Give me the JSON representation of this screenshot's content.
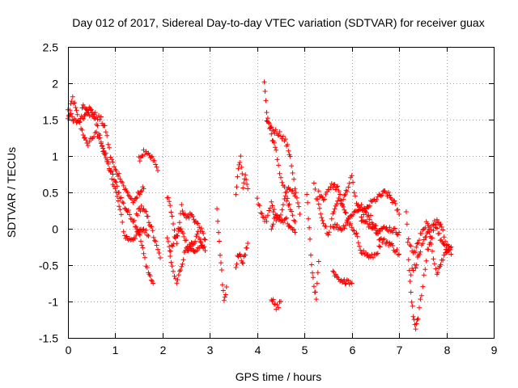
{
  "chart_data": {
    "type": "scatter",
    "title": "Day 012 of 2017, Sidereal Day-to-day VTEC variation (SDTVAR) for receiver guax",
    "xlabel": "GPS time / hours",
    "ylabel": "SDTVAR / TECUs",
    "xlim": [
      0,
      9
    ],
    "ylim": [
      -1.5,
      2.5
    ],
    "xticks": [
      "0",
      "1",
      "2",
      "3",
      "4",
      "5",
      "6",
      "7",
      "8",
      "9"
    ],
    "yticks": [
      "2.5",
      "2",
      "1.5",
      "1",
      "0.5",
      "0",
      "-0.5",
      "-1",
      "-1.5"
    ],
    "grid": true,
    "marker": "+",
    "color": "#ff0000",
    "series": [
      {
        "name": "SDTVAR",
        "traces": [
          [
            [
              0.0,
              1.5
            ],
            [
              0.1,
              1.8
            ],
            [
              0.2,
              1.55
            ],
            [
              0.3,
              1.35
            ],
            [
              0.4,
              1.15
            ],
            [
              0.5,
              1.25
            ],
            [
              0.6,
              1.3
            ],
            [
              0.7,
              1.2
            ],
            [
              0.8,
              1.0
            ],
            [
              0.9,
              0.8
            ],
            [
              1.0,
              0.65
            ],
            [
              1.1,
              0.45
            ],
            [
              1.2,
              0.3
            ],
            [
              1.3,
              0.2
            ],
            [
              1.4,
              0.1
            ],
            [
              1.5,
              -0.05
            ],
            [
              1.6,
              -0.35
            ],
            [
              1.7,
              -0.6
            ],
            [
              1.8,
              -0.75
            ]
          ],
          [
            [
              0.0,
              1.6
            ],
            [
              0.2,
              1.45
            ],
            [
              0.35,
              1.55
            ],
            [
              0.5,
              1.6
            ],
            [
              0.6,
              1.45
            ],
            [
              0.7,
              1.2
            ],
            [
              0.8,
              0.95
            ],
            [
              0.9,
              0.75
            ],
            [
              1.0,
              0.55
            ],
            [
              1.1,
              0.25
            ],
            [
              1.2,
              -0.1
            ],
            [
              1.3,
              -0.15
            ],
            [
              1.4,
              -0.12
            ],
            [
              1.5,
              -0.05
            ],
            [
              1.6,
              0.0
            ],
            [
              1.7,
              -0.1
            ]
          ],
          [
            [
              0.3,
              1.7
            ],
            [
              0.45,
              1.65
            ],
            [
              0.6,
              1.55
            ],
            [
              0.7,
              1.5
            ],
            [
              0.8,
              1.35
            ],
            [
              0.9,
              1.0
            ],
            [
              1.0,
              0.8
            ],
            [
              1.1,
              0.72
            ],
            [
              1.2,
              0.55
            ],
            [
              1.3,
              0.45
            ],
            [
              1.4,
              0.35
            ],
            [
              1.5,
              0.5
            ],
            [
              1.6,
              0.55
            ]
          ],
          [
            [
              1.5,
              0.95
            ],
            [
              1.6,
              1.05
            ],
            [
              1.7,
              1.0
            ],
            [
              1.8,
              0.95
            ],
            [
              1.9,
              0.8
            ]
          ],
          [
            [
              1.45,
              0.2
            ],
            [
              1.55,
              0.3
            ],
            [
              1.65,
              0.2
            ],
            [
              1.75,
              0.05
            ],
            [
              1.85,
              -0.2
            ],
            [
              1.95,
              -0.4
            ]
          ],
          [
            [
              2.1,
              0.45
            ],
            [
              2.2,
              0.2
            ],
            [
              2.3,
              -0.2
            ],
            [
              2.4,
              0.3
            ],
            [
              2.5,
              0.15
            ],
            [
              2.6,
              0.2
            ],
            [
              2.7,
              0.1
            ],
            [
              2.8,
              0.0
            ],
            [
              2.9,
              -0.15
            ]
          ],
          [
            [
              2.1,
              -0.1
            ],
            [
              2.2,
              -0.55
            ],
            [
              2.3,
              -0.75
            ],
            [
              2.4,
              -0.5
            ],
            [
              2.5,
              -0.25
            ],
            [
              2.6,
              -0.3
            ],
            [
              2.7,
              -0.35
            ],
            [
              2.8,
              -0.2
            ],
            [
              2.9,
              -0.3
            ]
          ],
          [
            [
              2.15,
              -0.3
            ],
            [
              2.25,
              -0.15
            ],
            [
              2.35,
              0.0
            ],
            [
              2.45,
              -0.1
            ],
            [
              2.55,
              -0.25
            ],
            [
              2.65,
              -0.2
            ],
            [
              2.75,
              -0.05
            ],
            [
              2.85,
              -0.25
            ]
          ],
          [
            [
              3.15,
              0.3
            ],
            [
              3.2,
              -0.2
            ],
            [
              3.25,
              -0.6
            ],
            [
              3.3,
              -1.0
            ],
            [
              3.35,
              -0.8
            ]
          ],
          [
            [
              3.55,
              0.5
            ],
            [
              3.6,
              0.8
            ],
            [
              3.65,
              1.0
            ],
            [
              3.7,
              0.6
            ],
            [
              3.75,
              0.75
            ],
            [
              3.8,
              0.55
            ]
          ],
          [
            [
              3.55,
              -0.5
            ],
            [
              3.6,
              -0.35
            ],
            [
              3.65,
              -0.4
            ],
            [
              3.7,
              -0.45
            ],
            [
              3.75,
              -0.35
            ],
            [
              3.8,
              -0.2
            ]
          ],
          [
            [
              4.15,
              2.05
            ],
            [
              4.2,
              1.6
            ],
            [
              4.3,
              1.3
            ],
            [
              4.4,
              1.05
            ],
            [
              4.5,
              0.7
            ],
            [
              4.6,
              0.5
            ],
            [
              4.7,
              0.55
            ],
            [
              4.8,
              0.45
            ]
          ],
          [
            [
              4.2,
              1.45
            ],
            [
              4.35,
              1.35
            ],
            [
              4.5,
              1.3
            ],
            [
              4.6,
              1.2
            ],
            [
              4.7,
              1.0
            ],
            [
              4.8,
              0.55
            ],
            [
              4.9,
              0.2
            ]
          ],
          [
            [
              4.0,
              0.4
            ],
            [
              4.1,
              0.2
            ],
            [
              4.2,
              0.1
            ],
            [
              4.3,
              0.35
            ],
            [
              4.4,
              0.15
            ],
            [
              4.5,
              0.2
            ],
            [
              4.6,
              0.45
            ],
            [
              4.7,
              0.3
            ],
            [
              4.8,
              0.1
            ]
          ],
          [
            [
              4.3,
              -0.95
            ],
            [
              4.4,
              -1.1
            ],
            [
              4.5,
              -1.0
            ]
          ],
          [
            [
              4.3,
              0.0
            ],
            [
              4.4,
              0.2
            ],
            [
              4.5,
              0.1
            ],
            [
              4.6,
              0.15
            ],
            [
              4.7,
              0.0
            ],
            [
              4.8,
              -0.05
            ]
          ],
          [
            [
              5.05,
              0.5
            ],
            [
              5.1,
              0.0
            ],
            [
              5.15,
              -0.5
            ],
            [
              5.2,
              -0.8
            ],
            [
              5.25,
              -0.95
            ],
            [
              5.3,
              -0.45
            ]
          ],
          [
            [
              5.2,
              0.6
            ],
            [
              5.3,
              0.3
            ],
            [
              5.4,
              0.1
            ],
            [
              5.5,
              -0.1
            ],
            [
              5.6,
              0.2
            ],
            [
              5.7,
              0.4
            ],
            [
              5.8,
              0.35
            ],
            [
              5.9,
              0.55
            ],
            [
              6.0,
              0.7
            ],
            [
              6.1,
              0.35
            ],
            [
              6.2,
              0.2
            ],
            [
              6.3,
              0.25
            ],
            [
              6.4,
              0.35
            ],
            [
              6.5,
              0.4
            ],
            [
              6.6,
              0.45
            ],
            [
              6.7,
              0.5
            ],
            [
              6.8,
              0.45
            ],
            [
              6.9,
              0.35
            ],
            [
              7.0,
              0.2
            ]
          ],
          [
            [
              5.3,
              0.5
            ],
            [
              5.4,
              0.4
            ],
            [
              5.5,
              0.55
            ],
            [
              5.6,
              0.6
            ],
            [
              5.7,
              0.55
            ],
            [
              5.8,
              0.35
            ],
            [
              5.9,
              0.15
            ],
            [
              6.0,
              0.0
            ],
            [
              6.1,
              -0.1
            ],
            [
              6.2,
              -0.3
            ],
            [
              6.3,
              -0.35
            ],
            [
              6.4,
              -0.4
            ],
            [
              6.5,
              -0.35
            ],
            [
              6.6,
              -0.25
            ]
          ],
          [
            [
              5.6,
              -0.6
            ],
            [
              5.7,
              -0.7
            ],
            [
              5.8,
              -0.75
            ],
            [
              5.9,
              -0.7
            ],
            [
              6.0,
              -0.75
            ]
          ],
          [
            [
              5.6,
              0.05
            ],
            [
              5.8,
              0.0
            ],
            [
              6.0,
              0.2
            ],
            [
              6.2,
              0.3
            ],
            [
              6.4,
              0.15
            ],
            [
              6.6,
              -0.15
            ],
            [
              6.8,
              -0.2
            ],
            [
              7.0,
              -0.35
            ]
          ],
          [
            [
              6.2,
              0.1
            ],
            [
              6.4,
              0.05
            ],
            [
              6.6,
              0.0
            ],
            [
              6.8,
              0.0
            ],
            [
              7.0,
              -0.05
            ]
          ],
          [
            [
              7.15,
              0.25
            ],
            [
              7.2,
              -0.4
            ],
            [
              7.25,
              -0.9
            ],
            [
              7.3,
              -1.2
            ],
            [
              7.35,
              -1.35
            ],
            [
              7.4,
              -1.2
            ],
            [
              7.5,
              -0.8
            ],
            [
              7.6,
              -0.3
            ],
            [
              7.7,
              -0.1
            ],
            [
              7.8,
              0.15
            ],
            [
              7.9,
              0.0
            ],
            [
              8.0,
              -0.2
            ],
            [
              8.1,
              -0.35
            ]
          ],
          [
            [
              7.2,
              -0.15
            ],
            [
              7.3,
              -0.35
            ],
            [
              7.4,
              -0.2
            ],
            [
              7.5,
              0.0
            ],
            [
              7.6,
              0.1
            ],
            [
              7.7,
              -0.3
            ],
            [
              7.8,
              -0.6
            ],
            [
              7.9,
              -0.45
            ],
            [
              8.0,
              -0.3
            ],
            [
              8.1,
              -0.25
            ]
          ],
          [
            [
              7.25,
              -0.6
            ],
            [
              7.35,
              -0.5
            ],
            [
              7.45,
              -0.3
            ],
            [
              7.55,
              -0.15
            ],
            [
              7.65,
              0.0
            ],
            [
              7.75,
              0.1
            ],
            [
              7.85,
              -0.1
            ],
            [
              7.95,
              -0.25
            ],
            [
              8.05,
              -0.3
            ]
          ]
        ]
      }
    ]
  }
}
